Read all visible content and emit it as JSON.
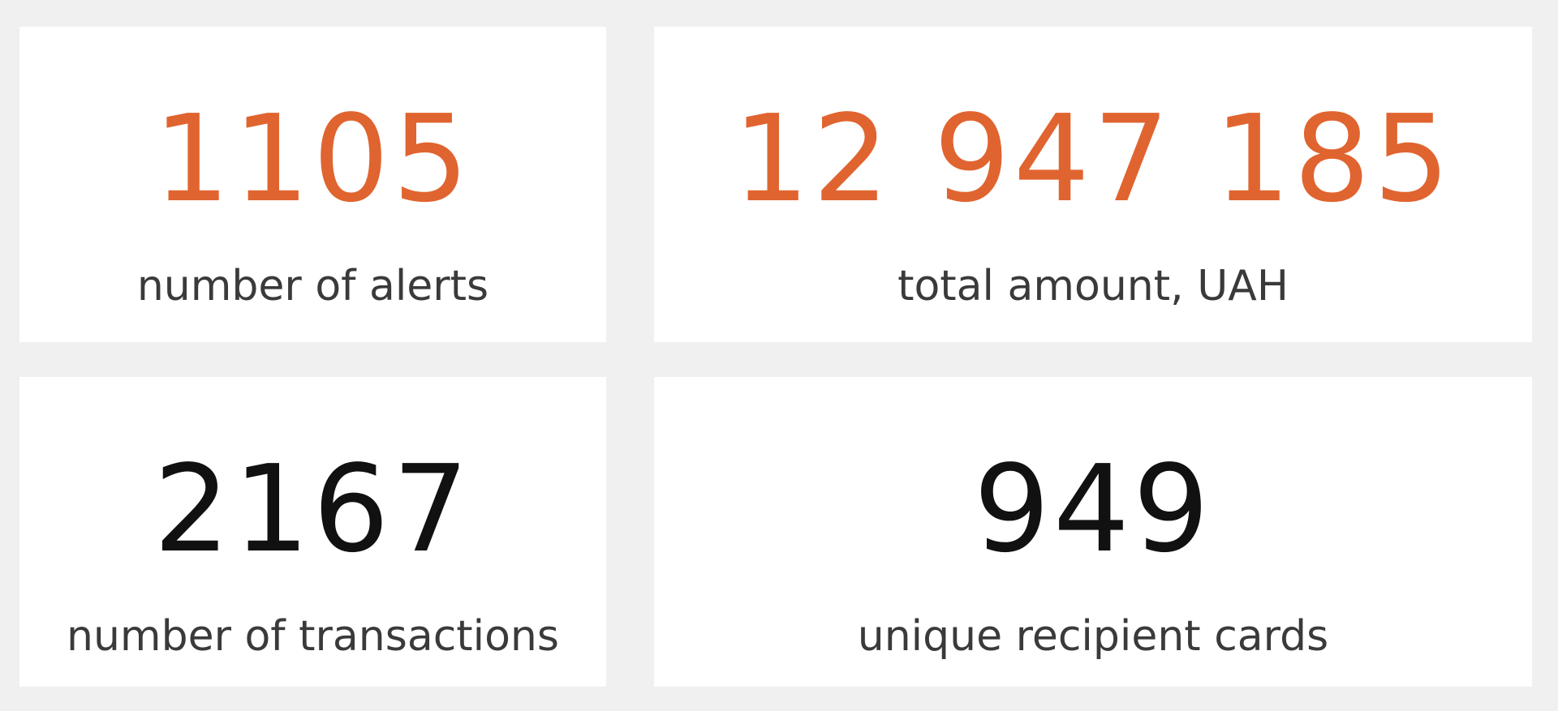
{
  "cards": [
    {
      "value": "1105",
      "label": "number of alerts",
      "color": "#e0642f"
    },
    {
      "value": "12 947 185",
      "label": "total amount, UAH",
      "color": "#e0642f"
    },
    {
      "value": "2167",
      "label": "number of transactions",
      "color": "#111111"
    },
    {
      "value": "949",
      "label": "unique recipient cards",
      "color": "#111111"
    }
  ]
}
